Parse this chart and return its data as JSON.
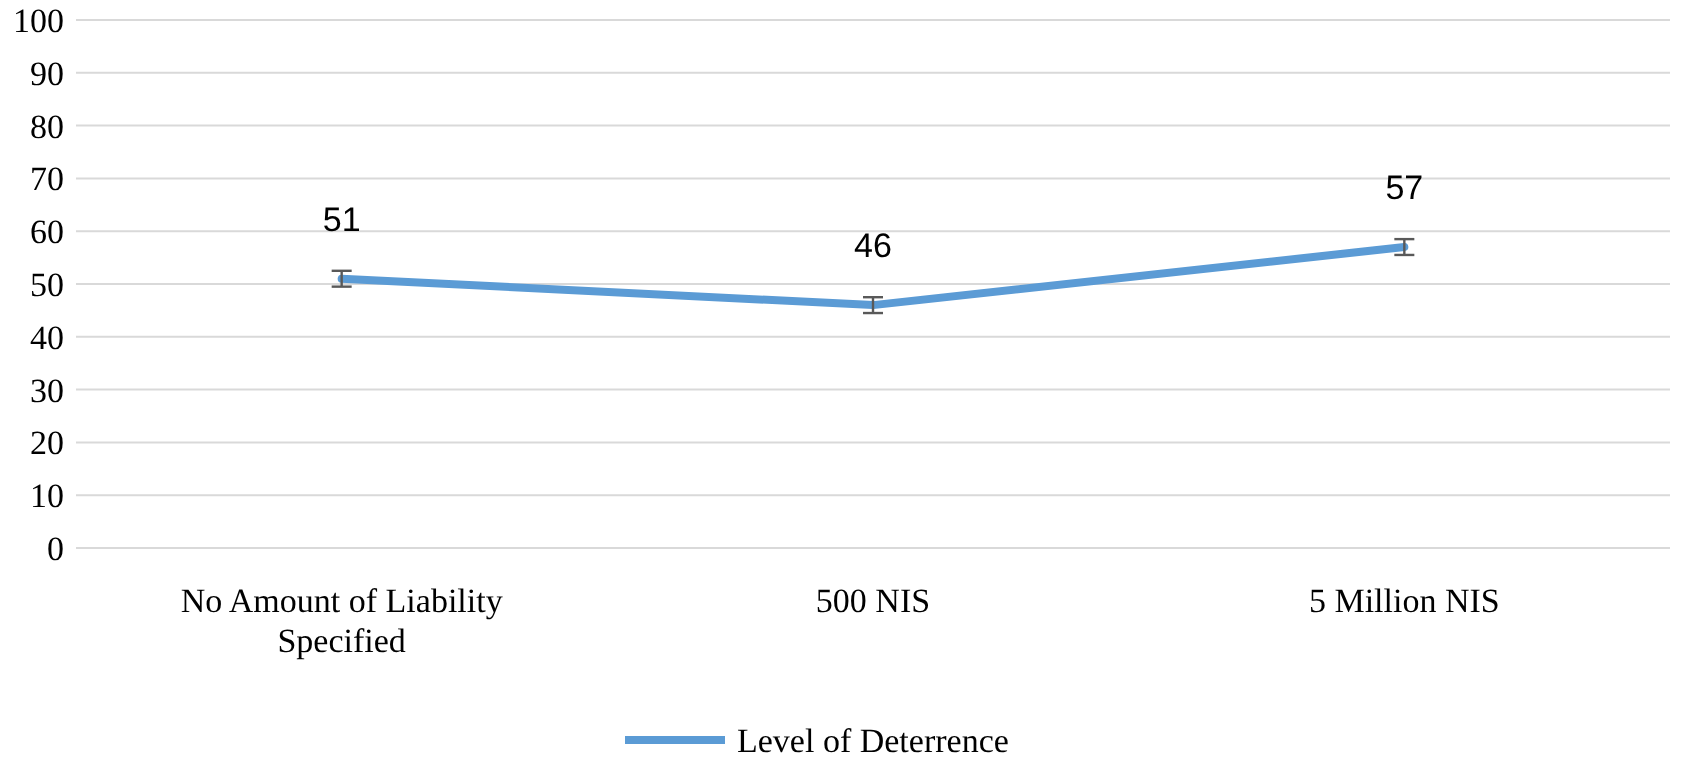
{
  "chart_data": {
    "type": "line",
    "categories": [
      "No Amount of Liability Specified",
      "500 NIS",
      "5 Million NIS"
    ],
    "series": [
      {
        "name": "Level of Deterrence",
        "color": "#5b9bd5",
        "values": [
          51,
          46,
          57
        ],
        "errors": [
          1.5,
          1.5,
          1.5
        ]
      }
    ],
    "ylim": [
      0,
      100
    ],
    "yticks": [
      0,
      10,
      20,
      30,
      40,
      50,
      60,
      70,
      80,
      90,
      100
    ],
    "grid": "y",
    "legend": "bottom",
    "data_labels": true,
    "marker": "none"
  }
}
